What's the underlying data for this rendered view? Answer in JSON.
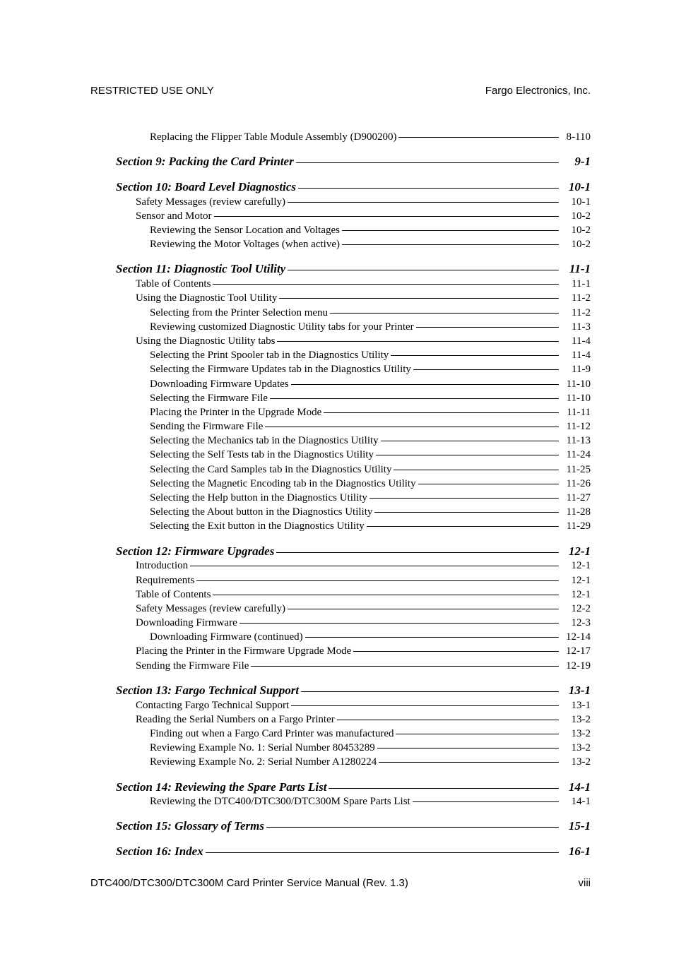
{
  "header": {
    "left": "RESTRICTED USE ONLY",
    "right": "Fargo Electronics, Inc."
  },
  "footer": {
    "left": "DTC400/DTC300/DTC300M Card Printer Service Manual (Rev. 1.3)",
    "right": "viii"
  },
  "toc": {
    "entries": [
      {
        "type": "level2",
        "label": "Replacing the Flipper Table Module Assembly (D900200)",
        "page": "8-110"
      },
      {
        "type": "section",
        "label": "Section 9: Packing the Card Printer",
        "page": "9-1"
      },
      {
        "type": "section",
        "label": "Section 10: Board Level Diagnostics",
        "page": "10-1"
      },
      {
        "type": "level1",
        "label": "Safety Messages (review carefully)",
        "page": "10-1"
      },
      {
        "type": "level1",
        "label": "Sensor and Motor",
        "page": "10-2"
      },
      {
        "type": "level2",
        "label": "Reviewing the Sensor Location and Voltages",
        "page": "10-2"
      },
      {
        "type": "level2",
        "label": "Reviewing the Motor Voltages (when active)",
        "page": "10-2"
      },
      {
        "type": "section",
        "label": "Section 11: Diagnostic Tool Utility",
        "page": "11-1"
      },
      {
        "type": "level1",
        "label": "Table of Contents",
        "page": "11-1"
      },
      {
        "type": "level1",
        "label": "Using the Diagnostic Tool Utility",
        "page": "11-2"
      },
      {
        "type": "level2",
        "label": "Selecting from the Printer Selection menu",
        "page": "11-2"
      },
      {
        "type": "level2",
        "label": "Reviewing customized Diagnostic Utility tabs for your Printer",
        "page": "11-3"
      },
      {
        "type": "level1",
        "label": "Using the Diagnostic Utility tabs",
        "page": "11-4"
      },
      {
        "type": "level2",
        "label": "Selecting the Print Spooler tab in the Diagnostics Utility",
        "page": "11-4"
      },
      {
        "type": "level2",
        "label": "Selecting the Firmware Updates tab in the Diagnostics Utility",
        "page": "11-9"
      },
      {
        "type": "level2",
        "label": "Downloading Firmware Updates",
        "page": "11-10"
      },
      {
        "type": "level2",
        "label": "Selecting the Firmware File",
        "page": "11-10"
      },
      {
        "type": "level2",
        "label": "Placing the Printer in the Upgrade Mode",
        "page": "11-11"
      },
      {
        "type": "level2",
        "label": "Sending the Firmware File",
        "page": "11-12"
      },
      {
        "type": "level2",
        "label": "Selecting the Mechanics tab in the Diagnostics Utility",
        "page": "11-13"
      },
      {
        "type": "level2",
        "label": "Selecting the Self Tests tab in the Diagnostics Utility",
        "page": "11-24"
      },
      {
        "type": "level2",
        "label": "Selecting the Card Samples tab in the Diagnostics Utility",
        "page": "11-25"
      },
      {
        "type": "level2",
        "label": "Selecting the Magnetic Encoding tab in the Diagnostics Utility",
        "page": "11-26"
      },
      {
        "type": "level2",
        "label": "Selecting the Help button in the Diagnostics Utility",
        "page": "11-27"
      },
      {
        "type": "level2",
        "label": "Selecting the About button in the Diagnostics Utility",
        "page": "11-28"
      },
      {
        "type": "level2",
        "label": "Selecting the Exit button in the Diagnostics Utility",
        "page": "11-29"
      },
      {
        "type": "section",
        "label": "Section 12: Firmware Upgrades",
        "page": "12-1"
      },
      {
        "type": "level1",
        "label": "Introduction",
        "page": "12-1"
      },
      {
        "type": "level1",
        "label": "Requirements",
        "page": "12-1"
      },
      {
        "type": "level1",
        "label": "Table of Contents",
        "page": "12-1"
      },
      {
        "type": "level1",
        "label": "Safety Messages (review carefully)",
        "page": "12-2"
      },
      {
        "type": "level1",
        "label": "Downloading Firmware",
        "page": "12-3"
      },
      {
        "type": "level2",
        "label": "Downloading Firmware (continued)",
        "page": "12-14"
      },
      {
        "type": "level1",
        "label": "Placing the Printer in the Firmware Upgrade Mode",
        "page": "12-17"
      },
      {
        "type": "level1",
        "label": "Sending the Firmware File",
        "page": "12-19"
      },
      {
        "type": "section",
        "label": "Section 13: Fargo Technical Support",
        "page": "13-1"
      },
      {
        "type": "level1",
        "label": "Contacting Fargo Technical Support",
        "page": "13-1"
      },
      {
        "type": "level1",
        "label": "Reading the Serial Numbers on a Fargo Printer",
        "page": "13-2"
      },
      {
        "type": "level2",
        "label": "Finding out when a Fargo Card Printer was manufactured",
        "page": "13-2"
      },
      {
        "type": "level2",
        "label": "Reviewing Example No. 1:  Serial Number 80453289",
        "page": "13-2"
      },
      {
        "type": "level2",
        "label": "Reviewing Example No. 2:  Serial Number A1280224",
        "page": "13-2"
      },
      {
        "type": "section",
        "label": "Section 14: Reviewing the Spare Parts List",
        "page": "14-1"
      },
      {
        "type": "level2",
        "label": "Reviewing the DTC400/DTC300/DTC300M Spare Parts List",
        "page": "14-1"
      },
      {
        "type": "section",
        "label": "Section 15: Glossary of Terms",
        "page": "15-1"
      },
      {
        "type": "section",
        "label": "Section 16: Index",
        "page": "16-1"
      }
    ]
  }
}
